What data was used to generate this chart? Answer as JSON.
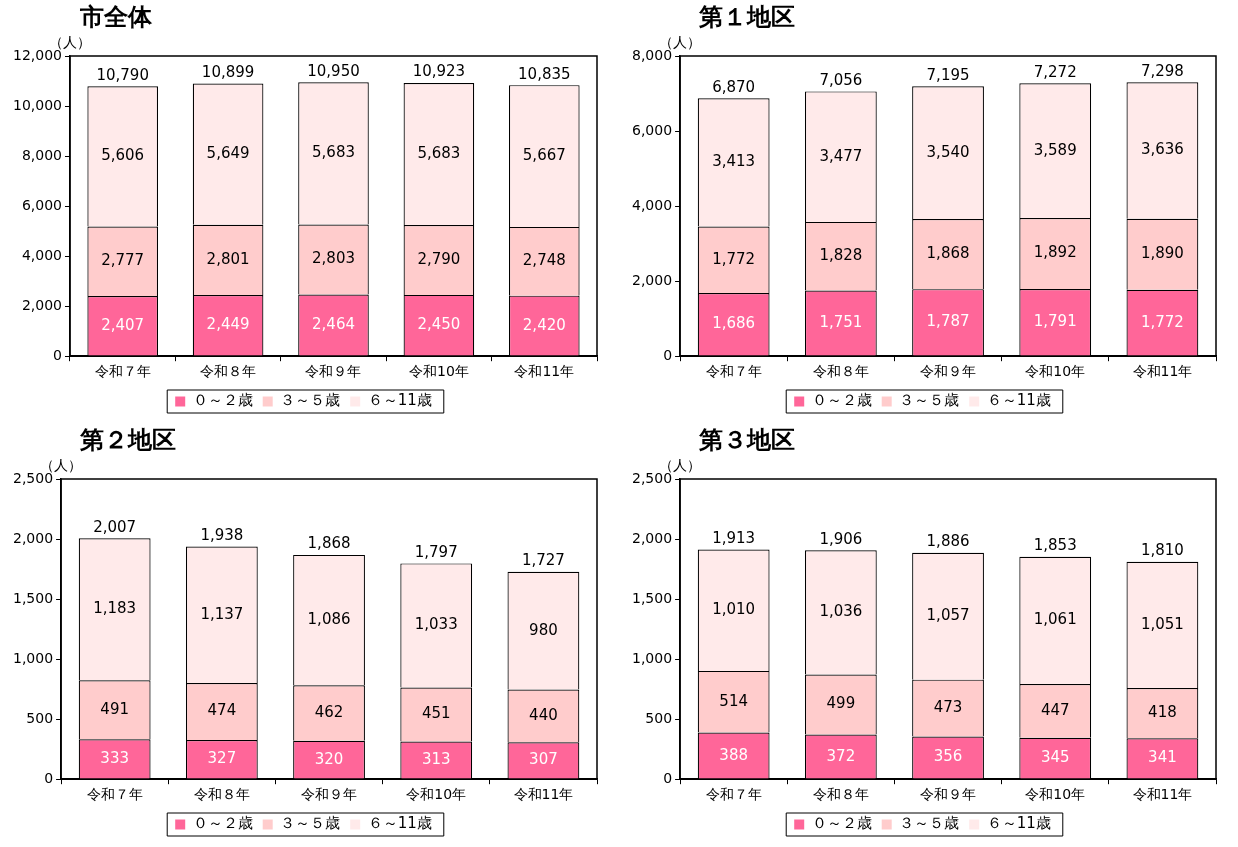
{
  "chart_data": [
    {
      "type": "bar",
      "title": "市全体",
      "ylabel": "（人）",
      "stacked": true,
      "grid": false,
      "legend": "bottom",
      "categories": [
        "令和７年",
        "令和８年",
        "令和９年",
        "令和10年",
        "令和11年"
      ],
      "ylim": [
        0,
        12000
      ],
      "yticks": [
        {
          "value": 0,
          "label": "0"
        },
        {
          "value": 2000,
          "label": "2,000"
        },
        {
          "value": 4000,
          "label": "4,000"
        },
        {
          "value": 6000,
          "label": "6,000"
        },
        {
          "value": 8000,
          "label": "8,000"
        },
        {
          "value": 10000,
          "label": "10,000"
        },
        {
          "value": 12000,
          "label": "12,000"
        }
      ],
      "totals": [
        "10,790",
        "10,899",
        "10,950",
        "10,923",
        "10,835"
      ],
      "series": [
        {
          "name": "０～２歳",
          "color": "#ff6699",
          "values": [
            2407,
            2449,
            2464,
            2450,
            2420
          ],
          "value_labels": [
            "2,407",
            "2,449",
            "2,464",
            "2,450",
            "2,420"
          ]
        },
        {
          "name": "３～５歳",
          "color": "#ffcccc",
          "values": [
            2777,
            2801,
            2803,
            2790,
            2748
          ],
          "value_labels": [
            "2,777",
            "2,801",
            "2,803",
            "2,790",
            "2,748"
          ]
        },
        {
          "name": "６～11歳",
          "color": "#ffeaea",
          "values": [
            5606,
            5649,
            5683,
            5683,
            5667
          ],
          "value_labels": [
            "5,606",
            "5,649",
            "5,683",
            "5,683",
            "5,667"
          ]
        }
      ]
    },
    {
      "type": "bar",
      "title": "第１地区",
      "ylabel": "（人）",
      "stacked": true,
      "grid": false,
      "legend": "bottom",
      "categories": [
        "令和７年",
        "令和８年",
        "令和９年",
        "令和10年",
        "令和11年"
      ],
      "ylim": [
        0,
        8000
      ],
      "yticks": [
        {
          "value": 0,
          "label": "0"
        },
        {
          "value": 2000,
          "label": "2,000"
        },
        {
          "value": 4000,
          "label": "4,000"
        },
        {
          "value": 6000,
          "label": "6,000"
        },
        {
          "value": 8000,
          "label": "8,000"
        }
      ],
      "totals": [
        "6,870",
        "7,056",
        "7,195",
        "7,272",
        "7,298"
      ],
      "series": [
        {
          "name": "０～２歳",
          "color": "#ff6699",
          "values": [
            1686,
            1751,
            1787,
            1791,
            1772
          ],
          "value_labels": [
            "1,686",
            "1,751",
            "1,787",
            "1,791",
            "1,772"
          ]
        },
        {
          "name": "３～５歳",
          "color": "#ffcccc",
          "values": [
            1772,
            1828,
            1868,
            1892,
            1890
          ],
          "value_labels": [
            "1,772",
            "1,828",
            "1,868",
            "1,892",
            "1,890"
          ]
        },
        {
          "name": "６～11歳",
          "color": "#ffeaea",
          "values": [
            3413,
            3477,
            3540,
            3589,
            3636
          ],
          "value_labels": [
            "3,413",
            "3,477",
            "3,540",
            "3,589",
            "3,636"
          ]
        }
      ]
    },
    {
      "type": "bar",
      "title": "第２地区",
      "ylabel": "（人）",
      "stacked": true,
      "grid": false,
      "legend": "bottom",
      "categories": [
        "令和７年",
        "令和８年",
        "令和９年",
        "令和10年",
        "令和11年"
      ],
      "ylim": [
        0,
        2500
      ],
      "yticks": [
        {
          "value": 0,
          "label": "0"
        },
        {
          "value": 500,
          "label": "500"
        },
        {
          "value": 1000,
          "label": "1,000"
        },
        {
          "value": 1500,
          "label": "1,500"
        },
        {
          "value": 2000,
          "label": "2,000"
        },
        {
          "value": 2500,
          "label": "2,500"
        }
      ],
      "totals": [
        "2,007",
        "1,938",
        "1,868",
        "1,797",
        "1,727"
      ],
      "series": [
        {
          "name": "０～２歳",
          "color": "#ff6699",
          "values": [
            333,
            327,
            320,
            313,
            307
          ],
          "value_labels": [
            "333",
            "327",
            "320",
            "313",
            "307"
          ]
        },
        {
          "name": "３～５歳",
          "color": "#ffcccc",
          "values": [
            491,
            474,
            462,
            451,
            440
          ],
          "value_labels": [
            "491",
            "474",
            "462",
            "451",
            "440"
          ]
        },
        {
          "name": "６～11歳",
          "color": "#ffeaea",
          "values": [
            1183,
            1137,
            1086,
            1033,
            980
          ],
          "value_labels": [
            "1,183",
            "1,137",
            "1,086",
            "1,033",
            "980"
          ]
        }
      ]
    },
    {
      "type": "bar",
      "title": "第３地区",
      "ylabel": "（人）",
      "stacked": true,
      "grid": false,
      "legend": "bottom",
      "categories": [
        "令和７年",
        "令和８年",
        "令和９年",
        "令和10年",
        "令和11年"
      ],
      "ylim": [
        0,
        2500
      ],
      "yticks": [
        {
          "value": 0,
          "label": "0"
        },
        {
          "value": 500,
          "label": "500"
        },
        {
          "value": 1000,
          "label": "1,000"
        },
        {
          "value": 1500,
          "label": "1,500"
        },
        {
          "value": 2000,
          "label": "2,000"
        },
        {
          "value": 2500,
          "label": "2,500"
        }
      ],
      "totals": [
        "1,913",
        "1,906",
        "1,886",
        "1,853",
        "1,810"
      ],
      "series": [
        {
          "name": "０～２歳",
          "color": "#ff6699",
          "values": [
            388,
            372,
            356,
            345,
            341
          ],
          "value_labels": [
            "388",
            "372",
            "356",
            "345",
            "341"
          ]
        },
        {
          "name": "３～５歳",
          "color": "#ffcccc",
          "values": [
            514,
            499,
            473,
            447,
            418
          ],
          "value_labels": [
            "514",
            "499",
            "473",
            "447",
            "418"
          ]
        },
        {
          "name": "６～11歳",
          "color": "#ffeaea",
          "values": [
            1010,
            1036,
            1057,
            1061,
            1051
          ],
          "value_labels": [
            "1,010",
            "1,036",
            "1,057",
            "1,061",
            "1,051"
          ]
        }
      ]
    }
  ]
}
